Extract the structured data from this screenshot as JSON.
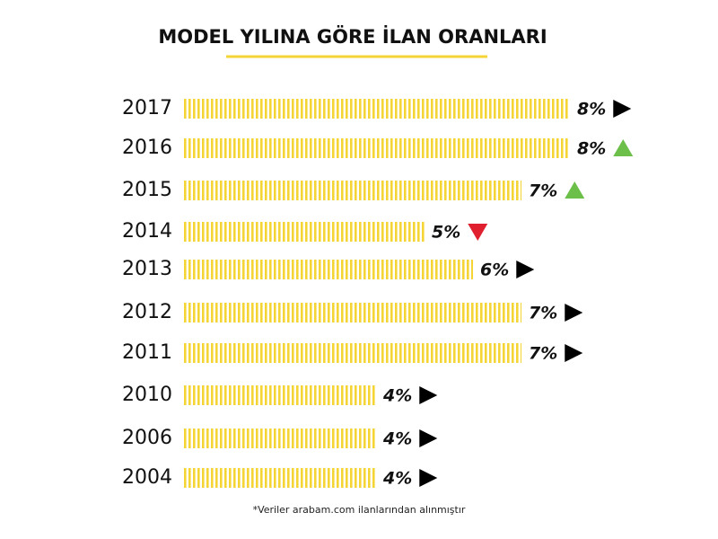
{
  "chart_data": {
    "type": "bar",
    "orientation": "horizontal",
    "title": "MODEL YILINA GÖRE İLAN ORANLARI",
    "categories": [
      "2017",
      "2016",
      "2015",
      "2014",
      "2013",
      "2012",
      "2011",
      "2010",
      "2006",
      "2004"
    ],
    "values": [
      8,
      8,
      7,
      5,
      6,
      7,
      7,
      4,
      4,
      4
    ],
    "value_labels": [
      "8%",
      "8%",
      "7%",
      "5%",
      "6%",
      "7%",
      "7%",
      "4%",
      "4%",
      "4%"
    ],
    "color": "#f5d535",
    "trend": [
      "right",
      "up",
      "up",
      "down",
      "right",
      "right",
      "right",
      "right",
      "right",
      "right"
    ],
    "trend_colors": {
      "right": "#000000",
      "up": "#6cc04a",
      "down": "#e0202f"
    },
    "note": "*Veriler arabam.com ilanlarından alınmıştır"
  }
}
